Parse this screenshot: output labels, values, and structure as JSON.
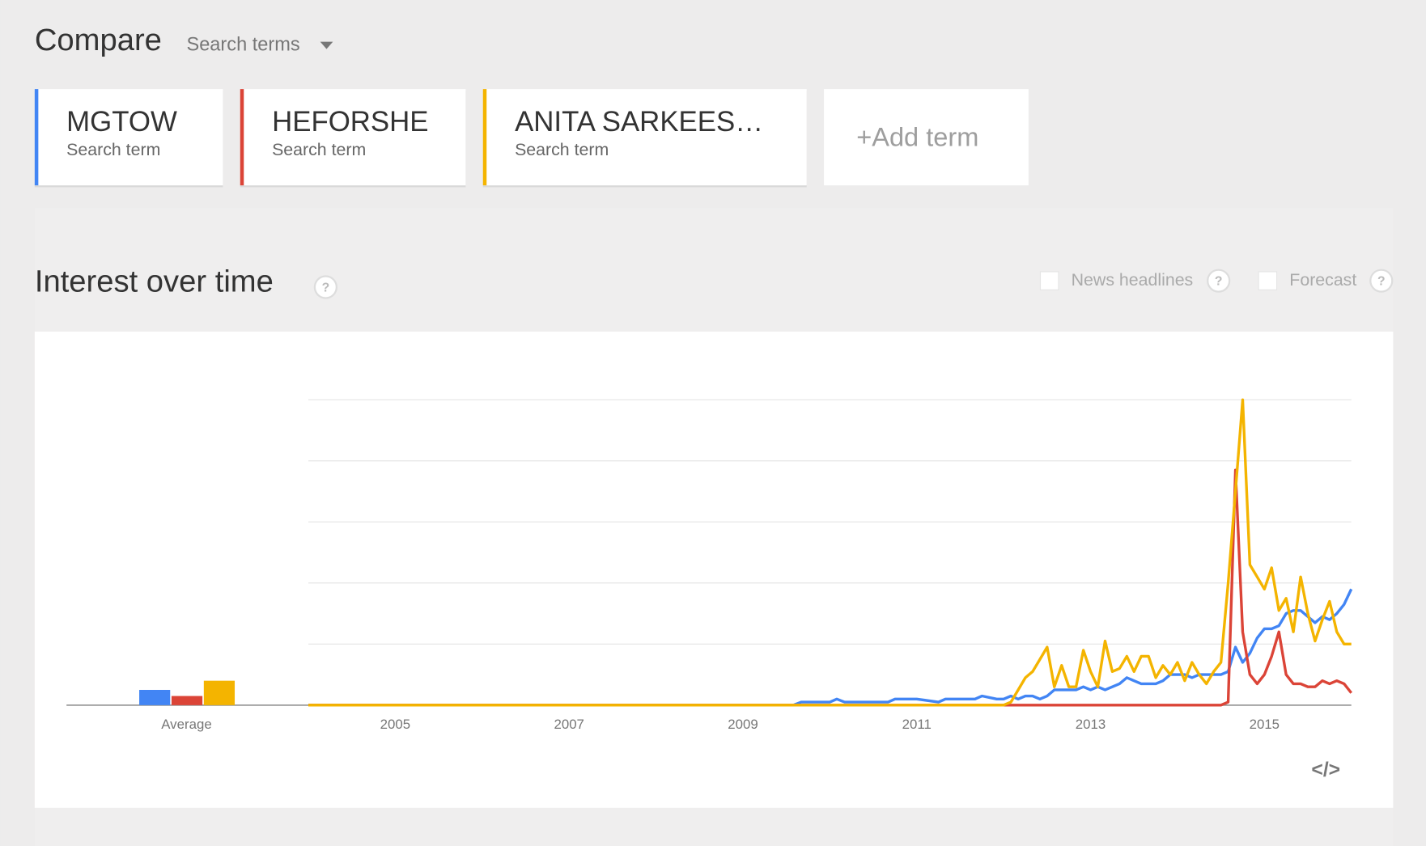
{
  "header": {
    "title": "Compare",
    "dropdown": "Search terms"
  },
  "term_label": "Search term",
  "add_term": "+Add term",
  "section": {
    "title": "Interest over time",
    "help": "?",
    "options": [
      "News headlines",
      "Forecast"
    ]
  },
  "embed_icon": "</>",
  "chart_data": {
    "type": "line",
    "average_label": "Average",
    "x": [
      2004,
      2009.58,
      2009.67,
      2010,
      2010.08,
      2010.17,
      2010.67,
      2010.75,
      2011,
      2011.25,
      2011.33,
      2011.67,
      2011.75,
      2011.92,
      2012,
      2012.083,
      2012.167,
      2012.25,
      2012.333,
      2012.417,
      2012.5,
      2012.583,
      2012.667,
      2012.75,
      2012.833,
      2012.917,
      2013,
      2013.083,
      2013.167,
      2013.25,
      2013.333,
      2013.417,
      2013.5,
      2013.583,
      2013.667,
      2013.75,
      2013.833,
      2013.917,
      2014,
      2014.083,
      2014.167,
      2014.25,
      2014.333,
      2014.417,
      2014.5,
      2014.583,
      2014.667,
      2014.75,
      2014.833,
      2014.917,
      2015,
      2015.083,
      2015.167,
      2015.25,
      2015.333,
      2015.417,
      2015.5,
      2015.583,
      2015.667,
      2015.75,
      2015.833,
      2015.917,
      2016
    ],
    "series": [
      {
        "name": "MGTOW",
        "color": "#4285f4",
        "average": 5,
        "values": [
          0,
          0,
          1,
          1,
          2,
          1,
          1,
          2,
          2,
          1,
          2,
          2,
          3,
          2,
          2,
          3,
          2,
          3,
          3,
          2,
          3,
          5,
          5,
          5,
          5,
          6,
          5,
          6,
          5,
          6,
          7,
          9,
          8,
          7,
          7,
          7,
          8,
          10,
          10,
          10,
          9,
          10,
          10,
          10,
          10,
          11,
          19,
          14,
          17,
          22,
          25,
          25,
          26,
          30,
          31,
          31,
          29,
          27,
          29,
          28,
          30,
          33,
          38
        ]
      },
      {
        "name": "HEFORSHE",
        "color": "#db4437",
        "average": 3,
        "values": [
          0,
          0,
          0,
          0,
          0,
          0,
          0,
          0,
          0,
          0,
          0,
          0,
          0,
          0,
          0,
          0,
          0,
          0,
          0,
          0,
          0,
          0,
          0,
          0,
          0,
          0,
          0,
          0,
          0,
          0,
          0,
          0,
          0,
          0,
          0,
          0,
          0,
          0,
          0,
          0,
          0,
          0,
          0,
          0,
          0,
          1,
          77,
          24,
          10,
          7,
          10,
          16,
          24,
          10,
          7,
          7,
          6,
          6,
          8,
          7,
          8,
          7,
          4
        ]
      },
      {
        "name": "ANITA SARKEES…",
        "color": "#f4b400",
        "average": 8,
        "values": [
          0,
          0,
          0,
          0,
          0,
          0,
          0,
          0,
          0,
          0,
          0,
          0,
          0,
          0,
          0,
          1,
          5,
          9,
          11,
          15,
          19,
          6,
          13,
          6,
          6,
          18,
          11,
          6,
          21,
          11,
          12,
          16,
          11,
          16,
          16,
          9,
          13,
          10,
          14,
          8,
          14,
          10,
          7,
          11,
          14,
          40,
          70,
          100,
          46,
          42,
          38,
          45,
          31,
          35,
          24,
          42,
          30,
          21,
          28,
          34,
          24,
          20,
          20
        ]
      }
    ],
    "xlim": [
      2004,
      2016
    ],
    "xticks": [
      2005,
      2007,
      2009,
      2011,
      2013,
      2015
    ],
    "ylim": [
      0,
      100
    ],
    "yticks": [
      0,
      20,
      40,
      60,
      80,
      100
    ],
    "grid": true
  }
}
